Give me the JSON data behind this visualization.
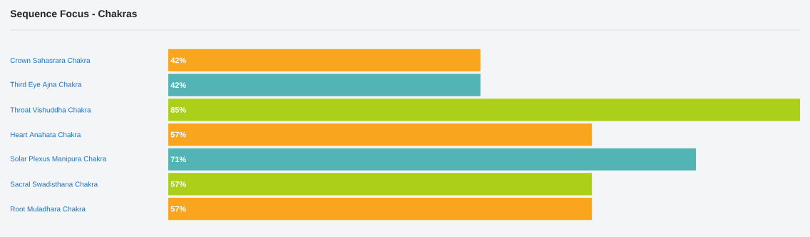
{
  "chart_data": {
    "type": "bar",
    "orientation": "horizontal",
    "title": "Sequence Focus - Chakras",
    "categories": [
      "Crown Sahasrara Chakra",
      "Third Eye Ajna Chakra",
      "Throat Vishuddha Chakra",
      "Heart Anahata Chakra",
      "Solar Plexus Manipura Chakra",
      "Sacral Swadisthana Chakra",
      "Root Muladhara Chakra"
    ],
    "values": [
      42,
      42,
      85,
      57,
      71,
      57,
      57
    ],
    "colors": [
      "#f9a61e",
      "#52b4b5",
      "#acd01a",
      "#f9a61e",
      "#52b4b5",
      "#acd01a",
      "#f9a61e"
    ],
    "value_labels": [
      "42%",
      "42%",
      "85%",
      "57%",
      "71%",
      "57%",
      "57%"
    ]
  }
}
